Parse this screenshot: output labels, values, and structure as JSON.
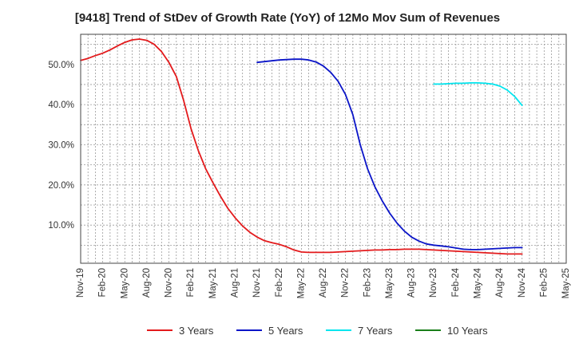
{
  "chart_data": {
    "type": "line",
    "title": "[9418]  Trend of StDev of Growth Rate (YoY) of 12Mo Mov Sum of Revenues",
    "xlabel": "",
    "ylabel": "",
    "x_ticks": [
      "Nov-19",
      "Feb-20",
      "May-20",
      "Aug-20",
      "Nov-20",
      "Feb-21",
      "May-21",
      "Aug-21",
      "Nov-21",
      "Feb-22",
      "May-22",
      "Aug-22",
      "Nov-22",
      "Feb-23",
      "May-23",
      "Aug-23",
      "Nov-23",
      "Feb-24",
      "May-24",
      "Aug-24",
      "Nov-24",
      "Feb-25",
      "May-25"
    ],
    "x_range_months": [
      0,
      66
    ],
    "y_ticks": [
      10,
      20,
      30,
      40,
      50
    ],
    "y_tick_labels": [
      "10.0%",
      "20.0%",
      "30.0%",
      "40.0%",
      "50.0%"
    ],
    "ylim": [
      0.5,
      57.5
    ],
    "grid": true,
    "legend_position": "bottom",
    "series": [
      {
        "name": "3 Years",
        "color": "#e31a1c",
        "x": [
          0,
          1,
          2,
          3,
          4,
          5,
          6,
          7,
          8,
          9,
          10,
          11,
          12,
          13,
          14,
          15,
          16,
          17,
          18,
          19,
          20,
          21,
          22,
          23,
          24,
          25,
          26,
          27,
          28,
          29,
          30,
          31,
          32,
          33,
          34,
          35,
          36,
          37,
          38,
          39,
          40,
          41,
          42,
          43,
          44,
          45,
          46,
          47,
          48,
          49,
          50,
          51,
          52,
          53,
          54,
          55,
          56,
          57,
          58,
          59,
          60
        ],
        "values": [
          51.0,
          51.5,
          52.2,
          52.8,
          53.6,
          54.6,
          55.5,
          56.1,
          56.3,
          56.0,
          55.0,
          53.2,
          50.5,
          47.0,
          41.0,
          34.0,
          28.5,
          24.0,
          20.5,
          17.2,
          14.2,
          11.8,
          9.8,
          8.2,
          7.0,
          6.1,
          5.6,
          5.2,
          4.6,
          3.8,
          3.3,
          3.2,
          3.2,
          3.2,
          3.2,
          3.3,
          3.4,
          3.5,
          3.6,
          3.7,
          3.8,
          3.8,
          3.9,
          3.9,
          4.0,
          4.0,
          4.0,
          3.9,
          3.8,
          3.7,
          3.6,
          3.5,
          3.4,
          3.3,
          3.2,
          3.1,
          3.0,
          2.9,
          2.8,
          2.8,
          2.8
        ]
      },
      {
        "name": "5 Years",
        "color": "#0a14c8",
        "x": [
          24,
          25,
          26,
          27,
          28,
          29,
          30,
          31,
          32,
          33,
          34,
          35,
          36,
          37,
          38,
          39,
          40,
          41,
          42,
          43,
          44,
          45,
          46,
          47,
          48,
          49,
          50,
          51,
          52,
          53,
          54,
          55,
          56,
          57,
          58,
          59,
          60
        ],
        "values": [
          50.5,
          50.7,
          50.9,
          51.1,
          51.2,
          51.3,
          51.3,
          51.1,
          50.6,
          49.6,
          48.0,
          45.8,
          42.5,
          37.5,
          30.0,
          24.0,
          19.5,
          16.0,
          13.0,
          10.5,
          8.5,
          7.0,
          6.0,
          5.3,
          5.0,
          4.8,
          4.6,
          4.3,
          4.0,
          3.9,
          3.9,
          4.0,
          4.1,
          4.2,
          4.3,
          4.4,
          4.4
        ]
      },
      {
        "name": "7 Years",
        "color": "#00e5ee",
        "x": [
          48,
          49,
          50,
          51,
          52,
          53,
          54,
          55,
          56,
          57,
          58,
          59,
          60
        ],
        "values": [
          45.1,
          45.1,
          45.2,
          45.3,
          45.3,
          45.4,
          45.4,
          45.3,
          45.1,
          44.6,
          43.6,
          42.0,
          39.8
        ]
      },
      {
        "name": "10 Years",
        "color": "#1a7f1a",
        "x": [],
        "values": []
      }
    ]
  }
}
